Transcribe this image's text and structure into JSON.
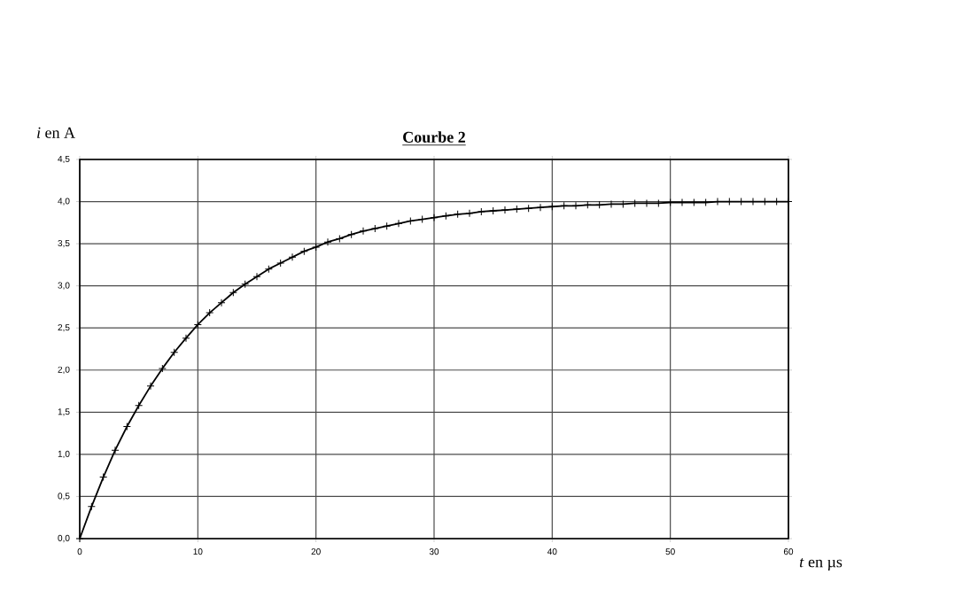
{
  "chart_data": {
    "type": "line",
    "title": "Courbe 2",
    "xlabel": "*t* en µs",
    "ylabel": "*i* en A",
    "x": [
      0,
      1,
      2,
      3,
      4,
      5,
      6,
      7,
      8,
      9,
      10,
      11,
      12,
      13,
      14,
      15,
      16,
      17,
      18,
      19,
      20,
      21,
      22,
      23,
      24,
      25,
      26,
      27,
      28,
      29,
      30,
      31,
      32,
      33,
      34,
      35,
      36,
      37,
      38,
      39,
      40,
      41,
      42,
      43,
      44,
      45,
      46,
      47,
      48,
      49,
      50,
      51,
      52,
      53,
      54,
      55,
      56,
      57,
      58,
      59,
      60
    ],
    "values": [
      0,
      0.38,
      0.73,
      1.05,
      1.33,
      1.58,
      1.81,
      2.02,
      2.21,
      2.38,
      2.54,
      2.68,
      2.8,
      2.92,
      3.02,
      3.11,
      3.2,
      3.27,
      3.34,
      3.41,
      3.46,
      3.52,
      3.56,
      3.61,
      3.65,
      3.68,
      3.71,
      3.74,
      3.77,
      3.79,
      3.81,
      3.83,
      3.85,
      3.86,
      3.88,
      3.89,
      3.9,
      3.91,
      3.92,
      3.93,
      3.94,
      3.95,
      3.95,
      3.96,
      3.96,
      3.97,
      3.97,
      3.98,
      3.98,
      3.98,
      3.99,
      3.99,
      3.99,
      3.99,
      4.0,
      4.0,
      4.0,
      4.0,
      4.0,
      4.0,
      4.0
    ],
    "color": "#000000",
    "marker": "cross",
    "line_style": "solid",
    "grid": true,
    "xlim": [
      0,
      60
    ],
    "ylim": [
      0,
      4.5
    ],
    "xticks": [
      0,
      10,
      20,
      30,
      40,
      50,
      60
    ],
    "yticks": [
      {
        "value": 0,
        "label": "0,0"
      },
      {
        "value": 0.5,
        "label": "0,5"
      },
      {
        "value": 1,
        "label": "1,0"
      },
      {
        "value": 1.5,
        "label": "1,5"
      },
      {
        "value": 2,
        "label": "2,0"
      },
      {
        "value": 2.5,
        "label": "2,5"
      },
      {
        "value": 3,
        "label": "3,0"
      },
      {
        "value": 3.5,
        "label": "3,5"
      },
      {
        "value": 4,
        "label": "4,0"
      },
      {
        "value": 4.5,
        "label": "4,5"
      }
    ]
  }
}
